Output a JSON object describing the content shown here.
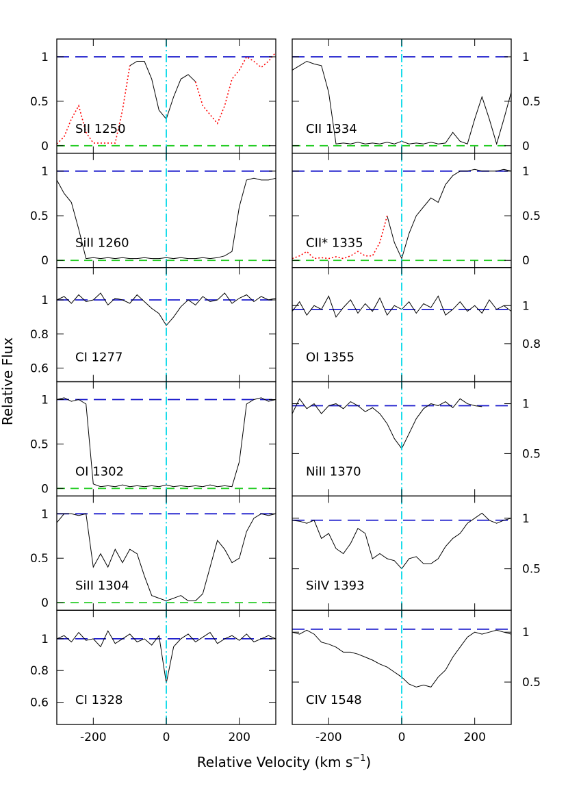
{
  "figure": {
    "y_label": "Relative Flux",
    "x_label": "Relative Velocity (km s",
    "x_label_sup": "−1",
    "x_label_end": ")"
  },
  "chart_data": [
    {
      "type": "line",
      "label": "SII 1250",
      "xlim": [
        -300,
        300
      ],
      "xticks": [
        -200,
        0,
        200
      ],
      "ylim": [
        -0.085,
        1.2
      ],
      "yticks": [
        0,
        0.5,
        1
      ],
      "continuum": 1,
      "zero_line": 0,
      "velocity_marker": 0,
      "x": [
        -300,
        -280,
        -260,
        -240,
        -220,
        -200,
        -180,
        -160,
        -140,
        -120,
        -100,
        -80,
        -60,
        -40,
        -20,
        0,
        20,
        40,
        60,
        80,
        100,
        120,
        140,
        160,
        180,
        200,
        220,
        240,
        260,
        280,
        300
      ],
      "series": [
        {
          "color": "#000000",
          "style": "solid",
          "values": [
            null,
            null,
            null,
            null,
            null,
            null,
            null,
            null,
            null,
            null,
            0.9,
            0.95,
            0.95,
            0.75,
            0.4,
            0.3,
            0.55,
            0.75,
            0.8,
            0.72,
            null,
            null,
            null,
            null,
            null,
            null,
            null,
            null,
            null,
            null,
            null
          ]
        },
        {
          "color": "#ff0000",
          "style": "dotted",
          "values": [
            0.02,
            0.1,
            0.3,
            0.45,
            0.15,
            0.03,
            0.03,
            0.03,
            0.03,
            0.4,
            0.9,
            null,
            null,
            null,
            null,
            null,
            null,
            null,
            null,
            0.72,
            0.45,
            0.35,
            0.25,
            0.45,
            0.75,
            0.85,
            1.0,
            0.95,
            0.88,
            0.95,
            1.05
          ]
        }
      ]
    },
    {
      "type": "line",
      "label": "CII 1334",
      "xlim": [
        -300,
        300
      ],
      "xticks": [
        -200,
        0,
        200
      ],
      "ylim": [
        -0.085,
        1.2
      ],
      "yticks": [
        0,
        0.5,
        1
      ],
      "continuum": 1,
      "zero_line": 0,
      "velocity_marker": 0,
      "x": [
        -300,
        -280,
        -260,
        -240,
        -220,
        -200,
        -180,
        -160,
        -140,
        -120,
        -100,
        -80,
        -60,
        -40,
        -20,
        0,
        20,
        40,
        60,
        80,
        100,
        120,
        140,
        160,
        180,
        200,
        220,
        240,
        260,
        280,
        300
      ],
      "series": [
        {
          "color": "#000000",
          "style": "solid",
          "values": [
            0.85,
            0.9,
            0.95,
            0.92,
            0.9,
            0.6,
            0.02,
            0.03,
            0.02,
            0.04,
            0.02,
            0.03,
            0.02,
            0.04,
            0.02,
            0.05,
            0.02,
            0.03,
            0.02,
            0.04,
            0.02,
            0.03,
            0.15,
            0.05,
            0.02,
            0.3,
            0.55,
            0.3,
            0.02,
            0.3,
            0.6
          ]
        }
      ]
    },
    {
      "type": "line",
      "label": "SiII 1260",
      "xlim": [
        -300,
        300
      ],
      "xticks": [
        -200,
        0,
        200
      ],
      "ylim": [
        -0.08,
        1.2
      ],
      "yticks": [
        0,
        0.5,
        1
      ],
      "continuum": 1,
      "zero_line": 0,
      "velocity_marker": 0,
      "x": [
        -300,
        -280,
        -260,
        -240,
        -220,
        -200,
        -180,
        -160,
        -140,
        -120,
        -100,
        -80,
        -60,
        -40,
        -20,
        0,
        20,
        40,
        60,
        80,
        100,
        120,
        140,
        160,
        180,
        200,
        220,
        240,
        260,
        280,
        300
      ],
      "series": [
        {
          "color": "#000000",
          "style": "solid",
          "values": [
            0.9,
            0.75,
            0.65,
            0.35,
            0.02,
            0.03,
            0.02,
            0.03,
            0.02,
            0.03,
            0.02,
            0.02,
            0.03,
            0.02,
            0.02,
            0.03,
            0.02,
            0.03,
            0.02,
            0.02,
            0.03,
            0.02,
            0.03,
            0.05,
            0.1,
            0.6,
            0.9,
            0.92,
            0.9,
            0.9,
            0.92
          ]
        }
      ]
    },
    {
      "type": "line",
      "label": "CII* 1335",
      "xlim": [
        -300,
        300
      ],
      "xticks": [
        -200,
        0,
        200
      ],
      "ylim": [
        -0.08,
        1.2
      ],
      "yticks": [
        0,
        0.5,
        1
      ],
      "continuum": 1,
      "zero_line": 0,
      "velocity_marker": 0,
      "x": [
        -300,
        -280,
        -260,
        -240,
        -220,
        -200,
        -180,
        -160,
        -140,
        -120,
        -100,
        -80,
        -60,
        -40,
        -20,
        0,
        20,
        40,
        60,
        80,
        100,
        120,
        140,
        160,
        180,
        200,
        220,
        240,
        260,
        280,
        300
      ],
      "series": [
        {
          "color": "#000000",
          "style": "solid",
          "values": [
            null,
            null,
            null,
            null,
            null,
            null,
            null,
            null,
            null,
            null,
            null,
            null,
            null,
            0.5,
            0.2,
            0.02,
            0.3,
            0.5,
            0.6,
            0.7,
            0.65,
            0.85,
            0.95,
            1.0,
            1.0,
            1.02,
            1.0,
            1.0,
            1.0,
            1.02,
            1.0
          ]
        },
        {
          "color": "#ff0000",
          "style": "dotted",
          "values": [
            0.02,
            0.05,
            0.1,
            0.02,
            0.03,
            0.02,
            0.04,
            0.02,
            0.05,
            0.1,
            0.05,
            0.05,
            0.2,
            0.5,
            null,
            null,
            null,
            null,
            null,
            null,
            null,
            null,
            null,
            null,
            null,
            null,
            null,
            null,
            null,
            null,
            null
          ]
        }
      ]
    },
    {
      "type": "line",
      "label": "CI 1277",
      "xlim": [
        -300,
        300
      ],
      "xticks": [
        -200,
        0,
        200
      ],
      "ylim": [
        0.52,
        1.19
      ],
      "yticks": [
        0.6,
        0.8,
        1
      ],
      "continuum": 1,
      "velocity_marker": 0,
      "x": [
        -300,
        -280,
        -260,
        -240,
        -220,
        -200,
        -180,
        -160,
        -140,
        -120,
        -100,
        -80,
        -60,
        -40,
        -20,
        0,
        20,
        40,
        60,
        80,
        100,
        120,
        140,
        160,
        180,
        200,
        220,
        240,
        260,
        280,
        300
      ],
      "series": [
        {
          "color": "#000000",
          "style": "solid",
          "values": [
            1.0,
            1.02,
            0.98,
            1.03,
            0.99,
            1.0,
            1.04,
            0.97,
            1.01,
            1.0,
            0.98,
            1.03,
            0.99,
            0.95,
            0.92,
            0.85,
            0.9,
            0.96,
            1.0,
            0.97,
            1.02,
            0.99,
            1.0,
            1.04,
            0.98,
            1.01,
            1.03,
            0.99,
            1.02,
            1.0,
            1.01
          ]
        }
      ]
    },
    {
      "type": "line",
      "label": "OI 1355",
      "xlim": [
        -300,
        300
      ],
      "xticks": [
        -200,
        0,
        200
      ],
      "ylim": [
        0.6,
        1.2
      ],
      "yticks": [
        0.8,
        1
      ],
      "continuum": 0.98,
      "velocity_marker": 0,
      "x": [
        -300,
        -280,
        -260,
        -240,
        -220,
        -200,
        -180,
        -160,
        -140,
        -120,
        -100,
        -80,
        -60,
        -40,
        -20,
        0,
        20,
        40,
        60,
        80,
        100,
        120,
        140,
        160,
        180,
        200,
        220,
        240,
        260,
        280,
        300
      ],
      "series": [
        {
          "color": "#000000",
          "style": "solid",
          "values": [
            0.97,
            1.02,
            0.95,
            1.0,
            0.98,
            1.05,
            0.94,
            0.99,
            1.03,
            0.96,
            1.01,
            0.97,
            1.04,
            0.95,
            1.0,
            0.98,
            1.02,
            0.96,
            1.01,
            0.99,
            1.05,
            0.95,
            0.98,
            1.02,
            0.97,
            1.0,
            0.96,
            1.03,
            0.98,
            1.0,
            0.97
          ]
        }
      ]
    },
    {
      "type": "line",
      "label": "OI 1302",
      "xlim": [
        -300,
        300
      ],
      "xticks": [
        -200,
        0,
        200
      ],
      "ylim": [
        -0.085,
        1.2
      ],
      "yticks": [
        0,
        0.5,
        1
      ],
      "continuum": 1,
      "zero_line": 0,
      "velocity_marker": 0,
      "x": [
        -300,
        -280,
        -260,
        -240,
        -220,
        -200,
        -180,
        -160,
        -140,
        -120,
        -100,
        -80,
        -60,
        -40,
        -20,
        0,
        20,
        40,
        60,
        80,
        100,
        120,
        140,
        160,
        180,
        200,
        220,
        240,
        260,
        280,
        300
      ],
      "series": [
        {
          "color": "#000000",
          "style": "solid",
          "values": [
            1.0,
            1.02,
            0.98,
            1.0,
            0.95,
            0.05,
            0.02,
            0.03,
            0.02,
            0.04,
            0.02,
            0.03,
            0.02,
            0.03,
            0.02,
            0.04,
            0.02,
            0.03,
            0.02,
            0.03,
            0.02,
            0.04,
            0.02,
            0.03,
            0.02,
            0.3,
            0.95,
            1.0,
            1.02,
            0.98,
            1.0
          ]
        }
      ]
    },
    {
      "type": "line",
      "label": "NiII 1370",
      "xlim": [
        -300,
        300
      ],
      "xticks": [
        -200,
        0,
        200
      ],
      "ylim": [
        0.075,
        1.22
      ],
      "yticks": [
        0.5,
        1
      ],
      "continuum": 0.98,
      "velocity_marker": 0,
      "x": [
        -300,
        -280,
        -260,
        -240,
        -220,
        -200,
        -180,
        -160,
        -140,
        -120,
        -100,
        -80,
        -60,
        -40,
        -20,
        0,
        20,
        40,
        60,
        80,
        100,
        120,
        140,
        160,
        180,
        200,
        220,
        240,
        260,
        280,
        300
      ],
      "series": [
        {
          "color": "#000000",
          "style": "solid",
          "values": [
            0.9,
            1.05,
            0.95,
            1.0,
            0.9,
            0.98,
            1.0,
            0.95,
            1.02,
            0.98,
            0.92,
            0.96,
            0.9,
            0.8,
            0.65,
            0.55,
            0.7,
            0.85,
            0.95,
            1.0,
            0.98,
            1.02,
            0.96,
            1.05,
            1.0,
            0.98,
            0.97,
            null,
            null,
            null,
            null
          ]
        }
      ]
    },
    {
      "type": "line",
      "label": "SiII 1304",
      "xlim": [
        -300,
        300
      ],
      "xticks": [
        -200,
        0,
        200
      ],
      "ylim": [
        -0.085,
        1.2
      ],
      "yticks": [
        0,
        0.5,
        1
      ],
      "continuum": 1,
      "zero_line": 0,
      "velocity_marker": 0,
      "x": [
        -300,
        -280,
        -260,
        -240,
        -220,
        -200,
        -180,
        -160,
        -140,
        -120,
        -100,
        -80,
        -60,
        -40,
        -20,
        0,
        20,
        40,
        60,
        80,
        100,
        120,
        140,
        160,
        180,
        200,
        220,
        240,
        260,
        280,
        300
      ],
      "series": [
        {
          "color": "#000000",
          "style": "solid",
          "values": [
            0.9,
            1.0,
            1.0,
            0.98,
            1.0,
            0.4,
            0.55,
            0.4,
            0.6,
            0.45,
            0.6,
            0.55,
            0.3,
            0.08,
            0.05,
            0.02,
            0.05,
            0.08,
            0.02,
            0.02,
            0.1,
            0.4,
            0.7,
            0.6,
            0.45,
            0.5,
            0.8,
            0.95,
            1.0,
            0.98,
            1.0
          ]
        }
      ]
    },
    {
      "type": "line",
      "label": "SiIV 1393",
      "xlim": [
        -300,
        300
      ],
      "xticks": [
        -200,
        0,
        200
      ],
      "ylim": [
        0.09,
        1.22
      ],
      "yticks": [
        0.5,
        1
      ],
      "continuum": 0.98,
      "velocity_marker": 0,
      "x": [
        -300,
        -280,
        -260,
        -240,
        -220,
        -200,
        -180,
        -160,
        -140,
        -120,
        -100,
        -80,
        -60,
        -40,
        -20,
        0,
        20,
        40,
        60,
        80,
        100,
        120,
        140,
        160,
        180,
        200,
        220,
        240,
        260,
        280,
        300
      ],
      "series": [
        {
          "color": "#000000",
          "style": "solid",
          "values": [
            0.98,
            0.97,
            0.95,
            0.98,
            0.8,
            0.85,
            0.7,
            0.65,
            0.75,
            0.9,
            0.85,
            0.6,
            0.65,
            0.6,
            0.58,
            0.5,
            0.6,
            0.62,
            0.55,
            0.55,
            0.6,
            0.72,
            0.8,
            0.85,
            0.95,
            1.0,
            1.05,
            0.98,
            0.95,
            0.98,
            1.0
          ]
        }
      ]
    },
    {
      "type": "line",
      "label": "CI 1328",
      "xlim": [
        -300,
        300
      ],
      "xticks": [
        -200,
        0,
        200
      ],
      "ylim": [
        0.46,
        1.18
      ],
      "yticks": [
        0.6,
        0.8,
        1
      ],
      "continuum": 1,
      "velocity_marker": 0,
      "x": [
        -300,
        -280,
        -260,
        -240,
        -220,
        -200,
        -180,
        -160,
        -140,
        -120,
        -100,
        -80,
        -60,
        -40,
        -20,
        0,
        20,
        40,
        60,
        80,
        100,
        120,
        140,
        160,
        180,
        200,
        220,
        240,
        260,
        280,
        300
      ],
      "series": [
        {
          "color": "#000000",
          "style": "solid",
          "values": [
            1.0,
            1.02,
            0.98,
            1.04,
            0.99,
            1.0,
            0.95,
            1.05,
            0.97,
            1.0,
            1.03,
            0.98,
            1.0,
            0.96,
            1.02,
            0.72,
            0.95,
            1.0,
            1.03,
            0.98,
            1.01,
            1.04,
            0.97,
            1.0,
            1.02,
            0.99,
            1.03,
            0.98,
            1.0,
            1.02,
            1.0
          ]
        }
      ]
    },
    {
      "type": "line",
      "label": "CIV 1548",
      "xlim": [
        -300,
        300
      ],
      "xticks": [
        -200,
        0,
        200
      ],
      "ylim": [
        0.075,
        1.22
      ],
      "yticks": [
        0.5,
        1
      ],
      "continuum": 1.03,
      "velocity_marker": 0,
      "x": [
        -300,
        -280,
        -260,
        -240,
        -220,
        -200,
        -180,
        -160,
        -140,
        -120,
        -100,
        -80,
        -60,
        -40,
        -20,
        0,
        20,
        40,
        60,
        80,
        100,
        120,
        140,
        160,
        180,
        200,
        220,
        240,
        260,
        280,
        300
      ],
      "series": [
        {
          "color": "#000000",
          "style": "solid",
          "values": [
            1.0,
            0.98,
            1.02,
            0.98,
            0.9,
            0.88,
            0.85,
            0.8,
            0.8,
            0.78,
            0.75,
            0.72,
            0.68,
            0.65,
            0.6,
            0.55,
            0.48,
            0.45,
            0.47,
            0.45,
            0.55,
            0.62,
            0.75,
            0.85,
            0.95,
            1.0,
            0.98,
            1.0,
            1.02,
            1.0,
            0.98
          ]
        }
      ]
    }
  ]
}
